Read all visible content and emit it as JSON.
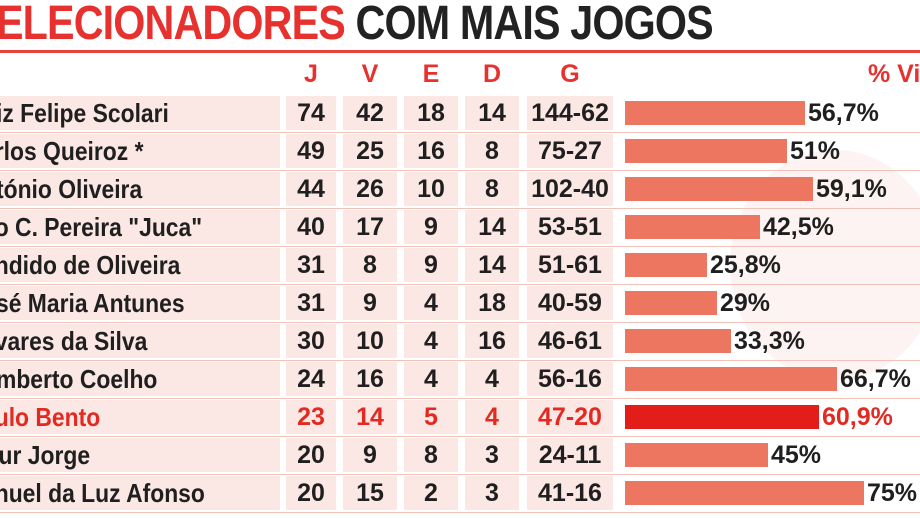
{
  "title": {
    "red": "ELECIONADORES",
    "dark": "COM MAIS JOGOS"
  },
  "columns": {
    "j": "J",
    "v": "V",
    "e": "E",
    "d": "D",
    "g": "G",
    "pct": "% Vi"
  },
  "colors": {
    "accent": "#e6312f",
    "bar": "#ec7660",
    "bar_highlight": "#e31d1a",
    "cell_bg": "#fbe7e3"
  },
  "chart_data": {
    "type": "table",
    "title": "ELECIONADORES COM MAIS JOGOS",
    "columns": [
      "J",
      "V",
      "E",
      "D",
      "G",
      "% Vi"
    ],
    "rows": [
      {
        "name": "uiz Felipe Scolari",
        "j": "74",
        "v": "42",
        "e": "18",
        "d": "14",
        "g": "144-62",
        "pct_label": "56,7%",
        "pct": 56.7,
        "highlight": false
      },
      {
        "name": "arlos Queiroz *",
        "j": "49",
        "v": "25",
        "e": "16",
        "d": "8",
        "g": "75-27",
        "pct_label": "51%",
        "pct": 51,
        "highlight": false
      },
      {
        "name": "ntónio Oliveira",
        "j": "44",
        "v": "26",
        "e": "10",
        "d": "8",
        "g": "102-40",
        "pct_label": "59,1%",
        "pct": 59.1,
        "highlight": false
      },
      {
        "name": "lio C. Pereira \"Juca\"",
        "j": "40",
        "v": "17",
        "e": "9",
        "d": "14",
        "g": "53-51",
        "pct_label": "42,5%",
        "pct": 42.5,
        "highlight": false
      },
      {
        "name": "ândido de Oliveira",
        "j": "31",
        "v": "8",
        "e": "9",
        "d": "14",
        "g": "51-61",
        "pct_label": "25,8%",
        "pct": 25.8,
        "highlight": false
      },
      {
        "name": "osé Maria Antunes",
        "j": "31",
        "v": "9",
        "e": "4",
        "d": "18",
        "g": "40-59",
        "pct_label": "29%",
        "pct": 29,
        "highlight": false
      },
      {
        "name": "avares da Silva",
        "j": "30",
        "v": "10",
        "e": "4",
        "d": "16",
        "g": "46-61",
        "pct_label": "33,3%",
        "pct": 33.3,
        "highlight": false
      },
      {
        "name": "umberto Coelho",
        "j": "24",
        "v": "16",
        "e": "4",
        "d": "4",
        "g": "56-16",
        "pct_label": "66,7%",
        "pct": 66.7,
        "highlight": false
      },
      {
        "name": "aulo Bento",
        "j": "23",
        "v": "14",
        "e": "5",
        "d": "4",
        "g": "47-20",
        "pct_label": "60,9%",
        "pct": 60.9,
        "highlight": true
      },
      {
        "name": "rtur Jorge",
        "j": "20",
        "v": "9",
        "e": "8",
        "d": "3",
        "g": "24-11",
        "pct_label": "45%",
        "pct": 45,
        "highlight": false
      },
      {
        "name": "anuel da Luz Afonso",
        "j": "20",
        "v": "15",
        "e": "2",
        "d": "3",
        "g": "41-16",
        "pct_label": "75%",
        "pct": 75,
        "highlight": false
      }
    ]
  }
}
